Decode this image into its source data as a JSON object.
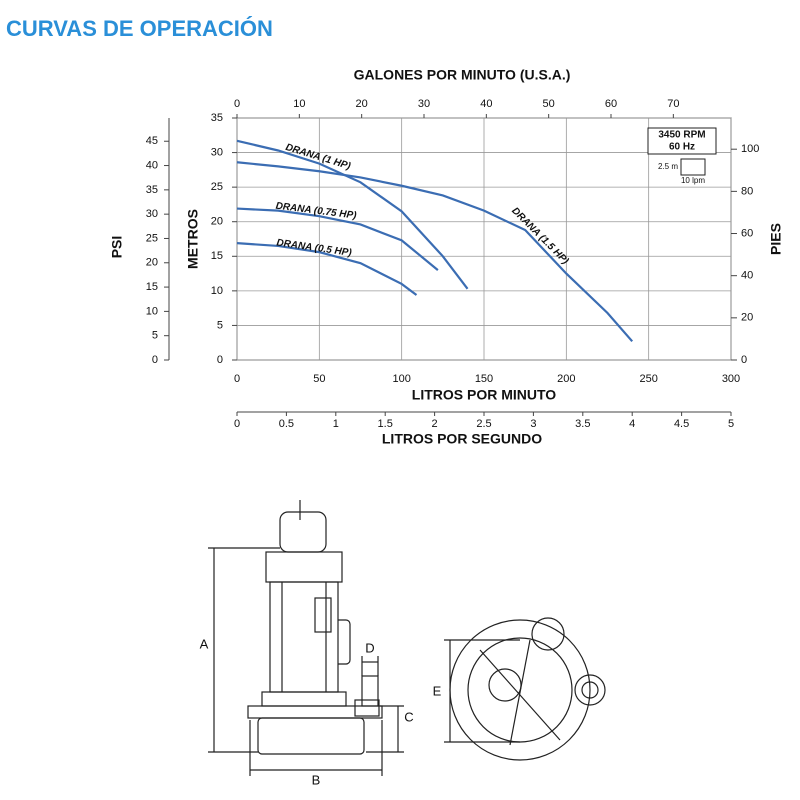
{
  "chart_data": {
    "type": "line",
    "title": "CURVAS DE OPERACIÓN",
    "x_label": "LITROS POR MINUTO",
    "y_label": "METROS",
    "xlim": [
      0,
      300
    ],
    "xticks": [
      0,
      50,
      100,
      150,
      200,
      250,
      300
    ],
    "ylim": [
      0,
      35
    ],
    "yticks": [
      0,
      5,
      10,
      15,
      20,
      25,
      30,
      35
    ],
    "x2_label": "GALONES POR MINUTO (U.S.A.)",
    "x2lim": [
      0,
      79.25
    ],
    "x2ticks": [
      0,
      10,
      20,
      30,
      40,
      50,
      60,
      70
    ],
    "x3_label": "LITROS POR SEGUNDO",
    "x3lim": [
      0,
      5
    ],
    "x3ticks": [
      0,
      0.5,
      1,
      1.5,
      2,
      2.5,
      3,
      3.5,
      4,
      4.5,
      5
    ],
    "y2_label": "PIES",
    "y2lim": [
      0,
      114.8
    ],
    "y2ticks": [
      0,
      20,
      40,
      60,
      80,
      100
    ],
    "y3_label": "PSI",
    "y3lim": [
      0,
      49.78
    ],
    "y3ticks": [
      0,
      5,
      10,
      15,
      20,
      25,
      30,
      35,
      40,
      45
    ],
    "grid": true,
    "annotations": [
      "3450 RPM",
      "60 Hz",
      "2.5 m",
      "10 lpm"
    ],
    "series": [
      {
        "name": "DRANA (1.5 HP)",
        "color": "#3b6db3",
        "x": [
          0,
          25,
          50,
          75,
          100,
          125,
          150,
          175,
          200,
          225,
          240
        ],
        "values": [
          28.6,
          28.0,
          27.3,
          26.4,
          25.2,
          23.8,
          21.6,
          18.8,
          12.5,
          6.8,
          2.7
        ]
      },
      {
        "name": "DRANA (1 HP)",
        "color": "#3b6db3",
        "x": [
          0,
          25,
          50,
          75,
          100,
          125,
          140
        ],
        "values": [
          31.7,
          30.3,
          28.4,
          25.7,
          21.5,
          15.0,
          10.3
        ]
      },
      {
        "name": "DRANA (0.75 HP)",
        "color": "#3b6db3",
        "x": [
          0,
          25,
          50,
          75,
          100,
          122
        ],
        "values": [
          21.9,
          21.6,
          20.8,
          19.6,
          17.3,
          13.0
        ]
      },
      {
        "name": "DRANA (0.5 HP)",
        "color": "#3b6db3",
        "x": [
          0,
          25,
          50,
          75,
          100,
          109
        ],
        "values": [
          16.9,
          16.5,
          15.6,
          14.0,
          11.0,
          9.4
        ]
      }
    ]
  },
  "diagram": {
    "labels": [
      "A",
      "B",
      "C",
      "D",
      "E"
    ]
  }
}
